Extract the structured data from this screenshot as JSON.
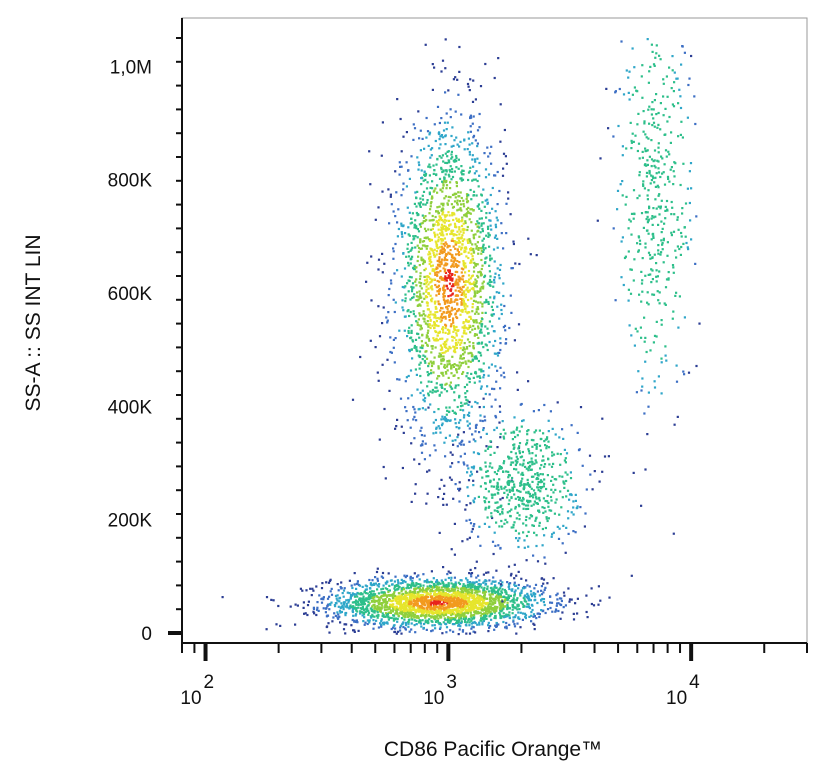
{
  "chart_data": {
    "type": "scatter",
    "subtype": "flow-cytometry density dot plot (pseudocolor)",
    "xlabel": "CD86 Pacific Orange™",
    "ylabel": "SS-A :: SS INT LIN",
    "x_scale": "log",
    "xlim": [
      80,
      30000
    ],
    "ylim": [
      0,
      1050000
    ],
    "x_ticks": [
      {
        "value": 100,
        "base": "10",
        "exp": "2"
      },
      {
        "value": 1000,
        "base": "10",
        "exp": "3"
      },
      {
        "value": 10000,
        "base": "10",
        "exp": "4"
      }
    ],
    "y_ticks": [
      {
        "value": 0,
        "label": "0"
      },
      {
        "value": 200000,
        "label": "200K"
      },
      {
        "value": 400000,
        "label": "400K"
      },
      {
        "value": 600000,
        "label": "600K"
      },
      {
        "value": 800000,
        "label": "800K"
      },
      {
        "value": 1000000,
        "label": "1,0M"
      }
    ],
    "density_colors": [
      "#2c3e94",
      "#3d6fc4",
      "#2fa6c9",
      "#2dbf8a",
      "#8fcf3c",
      "#e6e52c",
      "#f29a1e",
      "#e8231d"
    ],
    "grid": false,
    "legend": "none",
    "populations": [
      {
        "center_x": 900,
        "center_y": 55000,
        "spread_x_decades": 0.22,
        "spread_y": 22000,
        "points": 2600
      },
      {
        "center_x": 1000,
        "center_y": 620000,
        "spread_x_decades": 0.11,
        "spread_y": 140000,
        "points": 2200
      },
      {
        "center_x": 2000,
        "center_y": 270000,
        "spread_x_decades": 0.12,
        "spread_y": 60000,
        "points": 600
      },
      {
        "center_x": 7000,
        "center_y": 760000,
        "spread_x_decades": 0.08,
        "spread_y": 170000,
        "points": 450
      }
    ]
  }
}
